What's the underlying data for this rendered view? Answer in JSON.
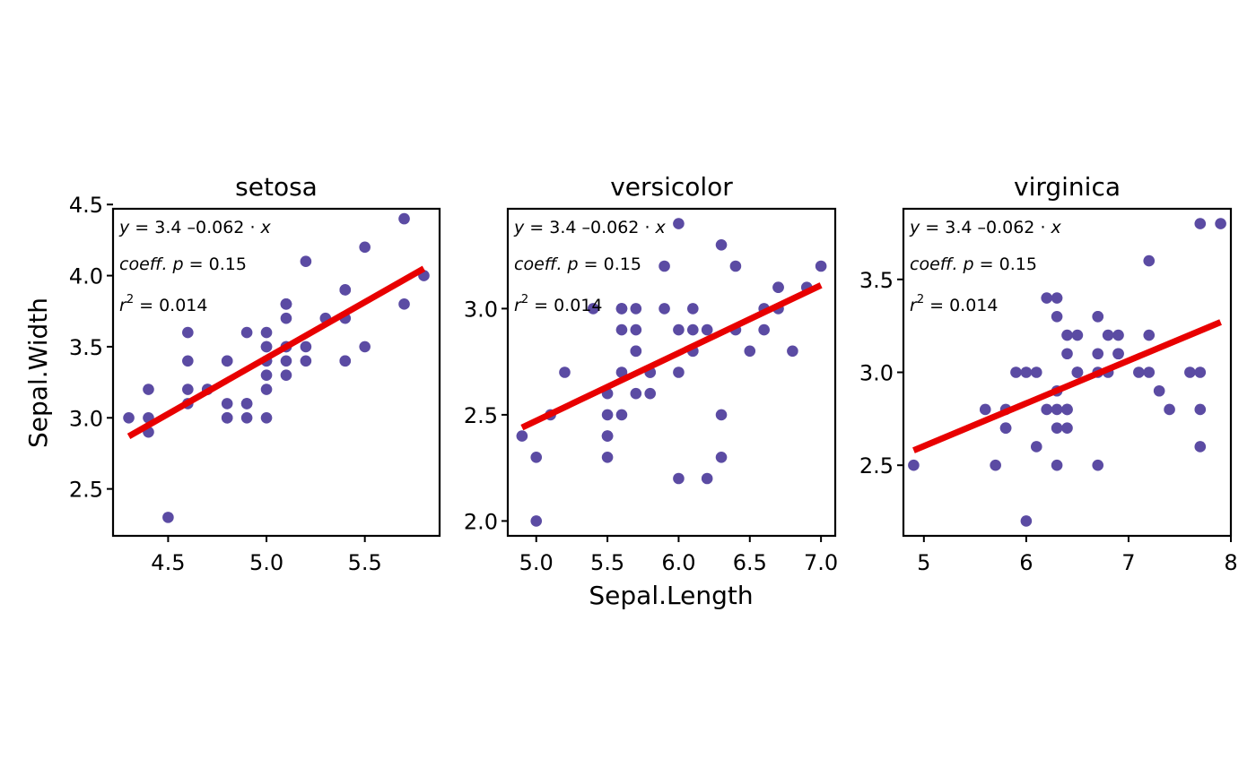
{
  "chart_data": {
    "type": "scatter",
    "xlabel": "Sepal.Length",
    "ylabel": "Sepal.Width",
    "point_color": "#5B4BA3",
    "line_color": "#E80000",
    "grid": false,
    "facets": [
      {
        "title": "setosa",
        "xlim": [
          4.22,
          5.88
        ],
        "ylim": [
          2.17,
          4.47
        ],
        "xticks": [
          "4.5",
          "5.0",
          "5.5"
        ],
        "xtick_values": [
          4.5,
          5.0,
          5.5
        ],
        "yticks": [
          "2.5",
          "3.0",
          "3.5",
          "4.0",
          "4.5"
        ],
        "ytick_values": [
          2.5,
          3.0,
          3.5,
          4.0,
          4.5
        ],
        "annotation": {
          "eq_lhs": "y",
          "eq_rhs": "= 3.4 –0.062 · ",
          "eq_x": "x",
          "coeff_label": "coeff. p",
          "coeff_val": " = 0.15",
          "r_label": "r",
          "r_sup": "2",
          "r_val": " = 0.014"
        },
        "fit": [
          [
            4.3,
            2.87
          ],
          [
            5.8,
            4.05
          ]
        ],
        "points": [
          [
            5.1,
            3.5
          ],
          [
            4.9,
            3.0
          ],
          [
            4.7,
            3.2
          ],
          [
            4.6,
            3.1
          ],
          [
            5.0,
            3.6
          ],
          [
            5.4,
            3.9
          ],
          [
            4.6,
            3.4
          ],
          [
            5.0,
            3.4
          ],
          [
            4.4,
            2.9
          ],
          [
            4.9,
            3.1
          ],
          [
            5.4,
            3.7
          ],
          [
            4.8,
            3.4
          ],
          [
            4.8,
            3.0
          ],
          [
            4.3,
            3.0
          ],
          [
            5.8,
            4.0
          ],
          [
            5.7,
            4.4
          ],
          [
            5.4,
            3.9
          ],
          [
            5.1,
            3.5
          ],
          [
            5.7,
            3.8
          ],
          [
            5.1,
            3.8
          ],
          [
            5.4,
            3.4
          ],
          [
            5.1,
            3.7
          ],
          [
            4.6,
            3.6
          ],
          [
            5.1,
            3.3
          ],
          [
            4.8,
            3.4
          ],
          [
            5.0,
            3.0
          ],
          [
            5.0,
            3.4
          ],
          [
            5.2,
            3.5
          ],
          [
            5.2,
            3.4
          ],
          [
            4.7,
            3.2
          ],
          [
            4.8,
            3.1
          ],
          [
            5.4,
            3.4
          ],
          [
            5.2,
            4.1
          ],
          [
            5.5,
            4.2
          ],
          [
            4.9,
            3.1
          ],
          [
            5.0,
            3.2
          ],
          [
            5.5,
            3.5
          ],
          [
            4.9,
            3.6
          ],
          [
            4.4,
            3.0
          ],
          [
            5.1,
            3.4
          ],
          [
            5.0,
            3.5
          ],
          [
            4.5,
            2.3
          ],
          [
            4.4,
            3.2
          ],
          [
            5.0,
            3.5
          ],
          [
            5.1,
            3.8
          ],
          [
            4.8,
            3.0
          ],
          [
            5.1,
            3.8
          ],
          [
            4.6,
            3.2
          ],
          [
            5.3,
            3.7
          ],
          [
            5.0,
            3.3
          ]
        ]
      },
      {
        "title": "versicolor",
        "xlim": [
          4.8,
          7.1
        ],
        "ylim": [
          1.93,
          3.47
        ],
        "xticks": [
          "5.0",
          "5.5",
          "6.0",
          "6.5",
          "7.0"
        ],
        "xtick_values": [
          5.0,
          5.5,
          6.0,
          6.5,
          7.0
        ],
        "yticks": [
          "2.0",
          "2.5",
          "3.0"
        ],
        "ytick_values": [
          2.0,
          2.5,
          3.0
        ],
        "annotation": {
          "eq_lhs": "y",
          "eq_rhs": "= 3.4 –0.062 · ",
          "eq_x": "x",
          "coeff_label": "coeff. p",
          "coeff_val": " = 0.15",
          "r_label": "r",
          "r_sup": "2",
          "r_val": " = 0.014"
        },
        "fit": [
          [
            4.9,
            2.44
          ],
          [
            7.0,
            3.11
          ]
        ],
        "points": [
          [
            7.0,
            3.2
          ],
          [
            6.4,
            3.2
          ],
          [
            6.9,
            3.1
          ],
          [
            5.5,
            2.3
          ],
          [
            6.5,
            2.8
          ],
          [
            5.7,
            2.8
          ],
          [
            6.3,
            3.3
          ],
          [
            4.9,
            2.4
          ],
          [
            6.6,
            2.9
          ],
          [
            5.2,
            2.7
          ],
          [
            5.0,
            2.0
          ],
          [
            5.9,
            3.0
          ],
          [
            6.0,
            2.2
          ],
          [
            6.1,
            2.9
          ],
          [
            5.6,
            2.9
          ],
          [
            6.7,
            3.1
          ],
          [
            5.6,
            3.0
          ],
          [
            5.8,
            2.7
          ],
          [
            6.2,
            2.2
          ],
          [
            5.6,
            2.5
          ],
          [
            5.9,
            3.2
          ],
          [
            6.1,
            2.8
          ],
          [
            6.3,
            2.5
          ],
          [
            6.1,
            2.8
          ],
          [
            6.4,
            2.9
          ],
          [
            6.6,
            3.0
          ],
          [
            6.8,
            2.8
          ],
          [
            6.7,
            3.0
          ],
          [
            6.0,
            2.9
          ],
          [
            5.7,
            2.6
          ],
          [
            5.5,
            2.4
          ],
          [
            5.5,
            2.4
          ],
          [
            5.8,
            2.7
          ],
          [
            6.0,
            2.7
          ],
          [
            5.4,
            3.0
          ],
          [
            6.0,
            3.4
          ],
          [
            6.7,
            3.1
          ],
          [
            6.3,
            2.3
          ],
          [
            5.6,
            3.0
          ],
          [
            5.5,
            2.5
          ],
          [
            5.5,
            2.6
          ],
          [
            6.1,
            3.0
          ],
          [
            5.8,
            2.6
          ],
          [
            5.0,
            2.3
          ],
          [
            5.6,
            2.7
          ],
          [
            5.7,
            3.0
          ],
          [
            5.7,
            2.9
          ],
          [
            6.2,
            2.9
          ],
          [
            5.1,
            2.5
          ],
          [
            5.7,
            2.8
          ]
        ]
      },
      {
        "title": "virginica",
        "xlim": [
          4.8,
          8.0
        ],
        "ylim": [
          2.12,
          3.88
        ],
        "xticks": [
          "5",
          "6",
          "7",
          "8"
        ],
        "xtick_values": [
          5,
          6,
          7,
          8
        ],
        "yticks": [
          "2.5",
          "3.0",
          "3.5"
        ],
        "ytick_values": [
          2.5,
          3.0,
          3.5
        ],
        "annotation": {
          "eq_lhs": "y",
          "eq_rhs": "= 3.4 –0.062 · ",
          "eq_x": "x",
          "coeff_label": "coeff. p",
          "coeff_val": " = 0.15",
          "r_label": "r",
          "r_sup": "2",
          "r_val": " = 0.014"
        },
        "fit": [
          [
            4.9,
            2.58
          ],
          [
            7.9,
            3.27
          ]
        ],
        "points": [
          [
            6.3,
            3.3
          ],
          [
            5.8,
            2.7
          ],
          [
            7.1,
            3.0
          ],
          [
            6.3,
            2.9
          ],
          [
            6.5,
            3.0
          ],
          [
            7.6,
            3.0
          ],
          [
            4.9,
            2.5
          ],
          [
            7.3,
            2.9
          ],
          [
            6.7,
            2.5
          ],
          [
            7.2,
            3.6
          ],
          [
            6.5,
            3.2
          ],
          [
            6.4,
            2.7
          ],
          [
            6.8,
            3.0
          ],
          [
            5.7,
            2.5
          ],
          [
            5.8,
            2.8
          ],
          [
            6.4,
            3.2
          ],
          [
            6.5,
            3.0
          ],
          [
            7.7,
            3.8
          ],
          [
            7.7,
            2.6
          ],
          [
            6.0,
            2.2
          ],
          [
            6.9,
            3.2
          ],
          [
            5.6,
            2.8
          ],
          [
            7.7,
            2.8
          ],
          [
            6.3,
            2.7
          ],
          [
            6.7,
            3.3
          ],
          [
            7.2,
            3.2
          ],
          [
            6.2,
            2.8
          ],
          [
            6.1,
            3.0
          ],
          [
            6.4,
            2.8
          ],
          [
            7.2,
            3.0
          ],
          [
            7.4,
            2.8
          ],
          [
            7.9,
            3.8
          ],
          [
            6.4,
            2.8
          ],
          [
            6.3,
            2.8
          ],
          [
            6.1,
            2.6
          ],
          [
            7.7,
            3.0
          ],
          [
            6.3,
            3.4
          ],
          [
            6.4,
            3.1
          ],
          [
            6.0,
            3.0
          ],
          [
            6.9,
            3.1
          ],
          [
            6.7,
            3.1
          ],
          [
            6.9,
            3.1
          ],
          [
            5.8,
            2.7
          ],
          [
            6.8,
            3.2
          ],
          [
            6.7,
            3.3
          ],
          [
            6.7,
            3.0
          ],
          [
            6.3,
            2.5
          ],
          [
            6.5,
            3.0
          ],
          [
            6.2,
            3.4
          ],
          [
            5.9,
            3.0
          ]
        ]
      }
    ]
  }
}
